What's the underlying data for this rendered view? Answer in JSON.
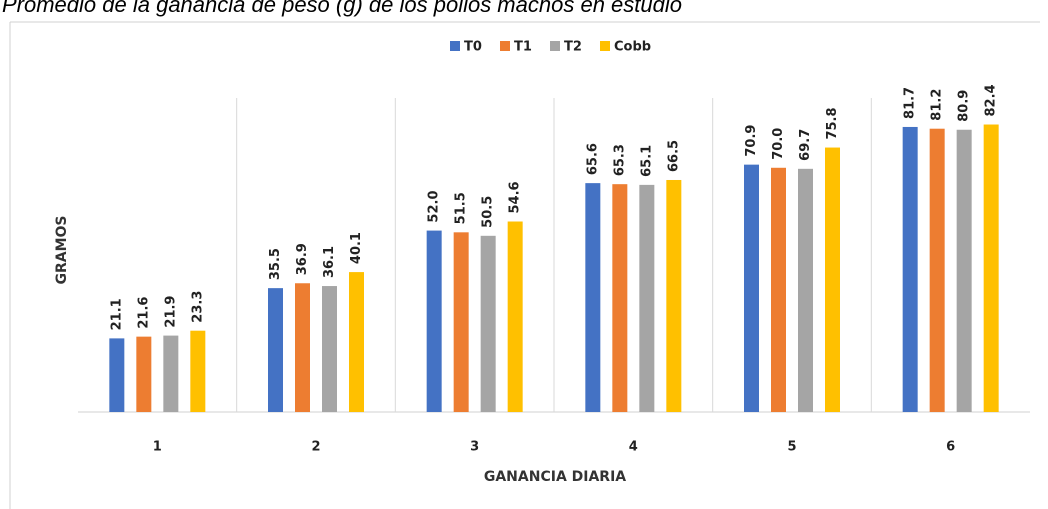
{
  "chart_data": {
    "type": "bar",
    "title": "Promedio de la ganancia de peso (g) de los pollos machos en estudio",
    "xlabel": "GANANCIA DIARIA",
    "ylabel": "GRAMOS",
    "categories": [
      "1",
      "2",
      "3",
      "4",
      "5",
      "6"
    ],
    "ylim": [
      0,
      90
    ],
    "legend": "top",
    "series": [
      {
        "name": "T0",
        "color": "#4472c4",
        "values": [
          21.1,
          35.5,
          52.0,
          65.6,
          70.9,
          81.7
        ],
        "value_labels": [
          "21.1",
          "35.5",
          "52.0",
          "65.6",
          "70.9",
          "81.7"
        ]
      },
      {
        "name": "T1",
        "color": "#ed7d31",
        "values": [
          21.6,
          36.9,
          51.5,
          65.3,
          70.0,
          81.2
        ],
        "value_labels": [
          "21.6",
          "36.9",
          "51.5",
          "65.3",
          "70.0",
          "81.2"
        ]
      },
      {
        "name": "T2",
        "color": "#a5a5a5",
        "values": [
          21.9,
          36.1,
          50.5,
          65.1,
          69.7,
          80.9
        ],
        "value_labels": [
          "21.9",
          "36.1",
          "50.5",
          "65.1",
          "69.7",
          "80.9"
        ]
      },
      {
        "name": "Cobb",
        "color": "#ffc000",
        "values": [
          23.3,
          40.1,
          54.6,
          66.5,
          75.8,
          82.4
        ],
        "value_labels": [
          "23.3",
          "40.1",
          "54.6",
          "66.5",
          "75.8",
          "82.4"
        ]
      }
    ]
  }
}
